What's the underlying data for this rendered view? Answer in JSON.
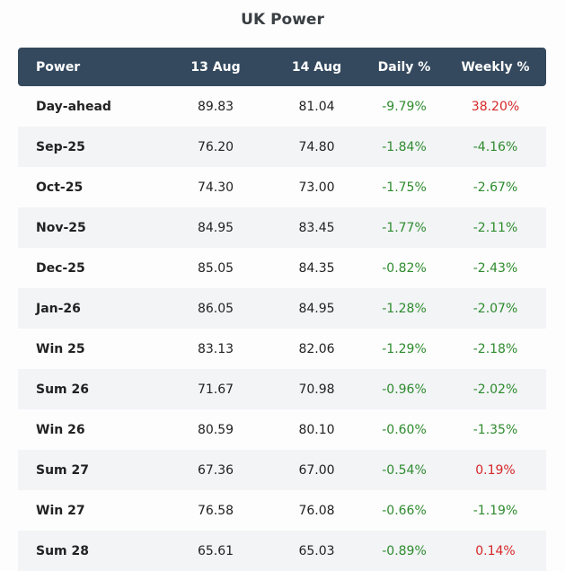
{
  "title": "UK Power",
  "colors": {
    "header_bg": "#34495e",
    "negative": "#2e8b2e",
    "positive": "#d62728",
    "row_alt": "#f2f4f6"
  },
  "columns": [
    "Power",
    "13 Aug",
    "14 Aug",
    "Daily %",
    "Weekly %"
  ],
  "rows": [
    {
      "name": "Day-ahead",
      "aug13": "89.83",
      "aug14": "81.04",
      "daily": "-9.79%",
      "weekly": "38.20%"
    },
    {
      "name": "Sep-25",
      "aug13": "76.20",
      "aug14": "74.80",
      "daily": "-1.84%",
      "weekly": "-4.16%"
    },
    {
      "name": "Oct-25",
      "aug13": "74.30",
      "aug14": "73.00",
      "daily": "-1.75%",
      "weekly": "-2.67%"
    },
    {
      "name": "Nov-25",
      "aug13": "84.95",
      "aug14": "83.45",
      "daily": "-1.77%",
      "weekly": "-2.11%"
    },
    {
      "name": "Dec-25",
      "aug13": "85.05",
      "aug14": "84.35",
      "daily": "-0.82%",
      "weekly": "-2.43%"
    },
    {
      "name": "Jan-26",
      "aug13": "86.05",
      "aug14": "84.95",
      "daily": "-1.28%",
      "weekly": "-2.07%"
    },
    {
      "name": "Win 25",
      "aug13": "83.13",
      "aug14": "82.06",
      "daily": "-1.29%",
      "weekly": "-2.18%"
    },
    {
      "name": "Sum 26",
      "aug13": "71.67",
      "aug14": "70.98",
      "daily": "-0.96%",
      "weekly": "-2.02%"
    },
    {
      "name": "Win 26",
      "aug13": "80.59",
      "aug14": "80.10",
      "daily": "-0.60%",
      "weekly": "-1.35%"
    },
    {
      "name": "Sum 27",
      "aug13": "67.36",
      "aug14": "67.00",
      "daily": "-0.54%",
      "weekly": "0.19%"
    },
    {
      "name": "Win 27",
      "aug13": "76.58",
      "aug14": "76.08",
      "daily": "-0.66%",
      "weekly": "-1.19%"
    },
    {
      "name": "Sum 28",
      "aug13": "65.61",
      "aug14": "65.03",
      "daily": "-0.89%",
      "weekly": "0.14%"
    }
  ]
}
